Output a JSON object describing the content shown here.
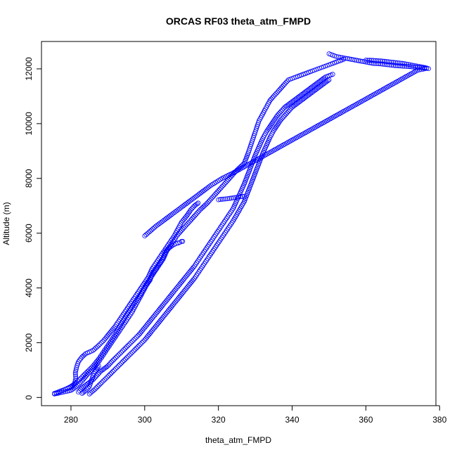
{
  "chart_data": {
    "type": "scatter",
    "title": "ORCAS RF03 theta_atm_FMPD",
    "xlabel": "theta_atm_FMPD",
    "ylabel": "Altitude (m)",
    "xlim": [
      272,
      379
    ],
    "ylim": [
      -300,
      13000
    ],
    "x_ticks": [
      280,
      300,
      320,
      340,
      360,
      380
    ],
    "y_ticks": [
      0,
      2000,
      4000,
      6000,
      8000,
      10000,
      12000
    ],
    "grid": false,
    "marker": "open-circle",
    "color": "#0000ff",
    "series": [
      {
        "x": [
          275.5,
          277,
          278.5,
          280,
          281,
          281.3,
          281.2,
          281.5,
          282,
          283,
          284,
          286,
          287.5,
          289,
          290.5,
          292,
          293.5,
          295,
          296.5,
          298,
          299.5,
          301,
          302,
          303.5,
          305,
          306.5,
          308,
          309,
          310,
          311.5,
          312.5,
          313.5,
          314.5
        ],
        "y": [
          150,
          220,
          300,
          380,
          500,
          700,
          900,
          1100,
          1300,
          1480,
          1600,
          1720,
          1900,
          2100,
          2350,
          2600,
          2900,
          3200,
          3500,
          3800,
          4100,
          4400,
          4700,
          5000,
          5300,
          5600,
          5900,
          6150,
          6400,
          6650,
          6850,
          7000,
          7100
        ]
      },
      {
        "x": [
          276,
          278,
          280,
          281.5,
          283,
          284.5,
          286,
          287.5,
          289,
          290.5,
          292,
          293.5,
          295,
          296.5,
          297.5,
          298.5,
          299.5,
          300.5,
          301.5,
          302,
          303,
          304,
          305,
          305.5,
          306.5,
          307.5,
          308.5,
          309.5,
          310,
          310.3
        ],
        "y": [
          140,
          200,
          260,
          400,
          600,
          850,
          1050,
          1300,
          1600,
          1900,
          2200,
          2500,
          2800,
          3100,
          3350,
          3600,
          3850,
          4100,
          4300,
          4500,
          4700,
          4900,
          5100,
          5300,
          5450,
          5550,
          5620,
          5660,
          5700,
          5700
        ]
      },
      {
        "x": [
          275.5,
          277,
          278.5,
          280,
          281.5,
          283,
          284.5,
          286,
          287.5,
          289,
          290.5,
          292,
          293.5,
          295,
          297,
          299,
          300.5,
          302,
          303.5,
          305,
          306,
          307.5,
          309,
          311,
          313,
          315,
          317,
          319,
          321,
          323,
          325,
          327,
          328,
          329,
          330,
          331,
          332,
          333,
          334,
          335,
          336,
          337,
          338,
          339,
          340,
          341,
          342,
          343,
          344,
          345,
          346,
          347,
          348,
          349,
          350,
          351,
          352,
          353,
          354
        ],
        "y": [
          130,
          220,
          300,
          400,
          550,
          750,
          950,
          1150,
          1400,
          1700,
          2000,
          2300,
          2650,
          3000,
          3400,
          3800,
          4150,
          4450,
          4750,
          5050,
          5350,
          5650,
          5950,
          6250,
          6550,
          6850,
          7100,
          7400,
          7700,
          8000,
          8300,
          8550,
          8900,
          9300,
          9700,
          10100,
          10350,
          10600,
          10850,
          11000,
          11150,
          11300,
          11450,
          11600,
          11650,
          11700,
          11750,
          11800,
          11850,
          11900,
          11950,
          12000,
          12050,
          12100,
          12150,
          12200,
          12250,
          12300,
          12350
        ]
      },
      {
        "x": [
          282,
          283,
          284.5,
          286,
          287,
          288,
          289,
          290,
          291,
          292.5,
          294,
          295.5,
          297,
          298.5,
          300,
          301.5,
          303,
          304.5,
          306,
          307.5,
          309,
          310.5,
          312,
          313.5,
          315,
          316.5,
          318,
          319.5,
          321,
          322.5,
          324,
          325,
          326,
          327,
          328,
          329,
          330,
          331,
          332,
          333,
          334,
          335,
          336,
          337,
          338,
          339,
          340,
          341,
          342,
          343,
          344,
          345,
          346,
          347,
          348,
          349,
          350,
          351
        ],
        "y": [
          200,
          350,
          500,
          650,
          800,
          950,
          1050,
          1150,
          1300,
          1500,
          1700,
          1900,
          2100,
          2300,
          2550,
          2800,
          3050,
          3300,
          3550,
          3800,
          4050,
          4300,
          4550,
          4800,
          5100,
          5400,
          5700,
          6000,
          6300,
          6600,
          6900,
          7200,
          7500,
          7800,
          8150,
          8500,
          8850,
          9150,
          9450,
          9700,
          9900,
          10100,
          10300,
          10450,
          10600,
          10700,
          10800,
          10900,
          11000,
          11100,
          11200,
          11300,
          11400,
          11500,
          11600,
          11700,
          11750,
          11800
        ]
      },
      {
        "x": [
          285,
          286.5,
          288,
          289.5,
          291,
          292.5,
          294,
          295.5,
          297,
          298.5,
          300,
          301.5,
          303,
          304.5,
          306,
          307.5,
          309,
          310.5,
          312,
          313.5,
          315,
          316.5,
          318,
          319.5,
          321,
          322.5,
          324,
          325.5,
          327,
          328,
          329,
          330,
          331,
          332,
          333,
          334,
          335,
          336,
          337,
          338,
          339,
          340,
          341,
          342,
          343,
          344,
          345,
          346,
          347,
          348,
          349,
          350
        ],
        "y": [
          130,
          300,
          500,
          700,
          900,
          1100,
          1300,
          1500,
          1700,
          1900,
          2100,
          2350,
          2600,
          2850,
          3100,
          3350,
          3600,
          3850,
          4100,
          4350,
          4650,
          4950,
          5250,
          5550,
          5850,
          6150,
          6450,
          6800,
          7150,
          7500,
          7850,
          8200,
          8550,
          8900,
          9200,
          9500,
          9750,
          9950,
          10150,
          10300,
          10450,
          10600,
          10700,
          10800,
          10900,
          11000,
          11100,
          11200,
          11300,
          11400,
          11500,
          11600
        ]
      },
      {
        "x": [
          320,
          321,
          322,
          323,
          324,
          325,
          326,
          326.5,
          327
        ],
        "y": [
          7220,
          7240,
          7250,
          7270,
          7290,
          7310,
          7330,
          7340,
          7350
        ]
      },
      {
        "x": [
          350,
          352,
          354,
          356,
          358,
          360,
          362,
          364,
          366,
          368,
          370,
          372,
          374,
          376,
          377,
          376,
          374,
          372,
          370,
          368,
          366,
          364,
          362,
          360
        ],
        "y": [
          12550,
          12450,
          12400,
          12350,
          12300,
          12250,
          12200,
          12180,
          12150,
          12120,
          12100,
          12080,
          12050,
          12030,
          12010,
          12050,
          12100,
          12150,
          12200,
          12230,
          12260,
          12290,
          12310,
          12320
        ]
      },
      {
        "x": [
          300,
          303,
          306,
          309,
          312,
          315,
          318,
          321,
          324,
          326,
          328,
          330,
          332,
          334,
          336,
          338,
          340,
          342,
          344,
          346,
          348,
          350,
          352,
          354,
          356,
          358,
          360,
          362,
          364,
          366,
          368,
          370,
          372,
          374,
          376
        ],
        "y": [
          5900,
          6250,
          6550,
          6850,
          7150,
          7450,
          7750,
          8000,
          8200,
          8350,
          8500,
          8650,
          8800,
          8950,
          9100,
          9250,
          9400,
          9550,
          9700,
          9850,
          10000,
          10150,
          10300,
          10450,
          10600,
          10750,
          10900,
          11050,
          11200,
          11350,
          11500,
          11650,
          11800,
          11950,
          12000
        ]
      },
      {
        "x": [
          283,
          284,
          285,
          285.5,
          286,
          286.5,
          287,
          287.5
        ],
        "y": [
          150,
          250,
          400,
          600,
          800,
          950,
          1050,
          1150
        ]
      }
    ]
  }
}
